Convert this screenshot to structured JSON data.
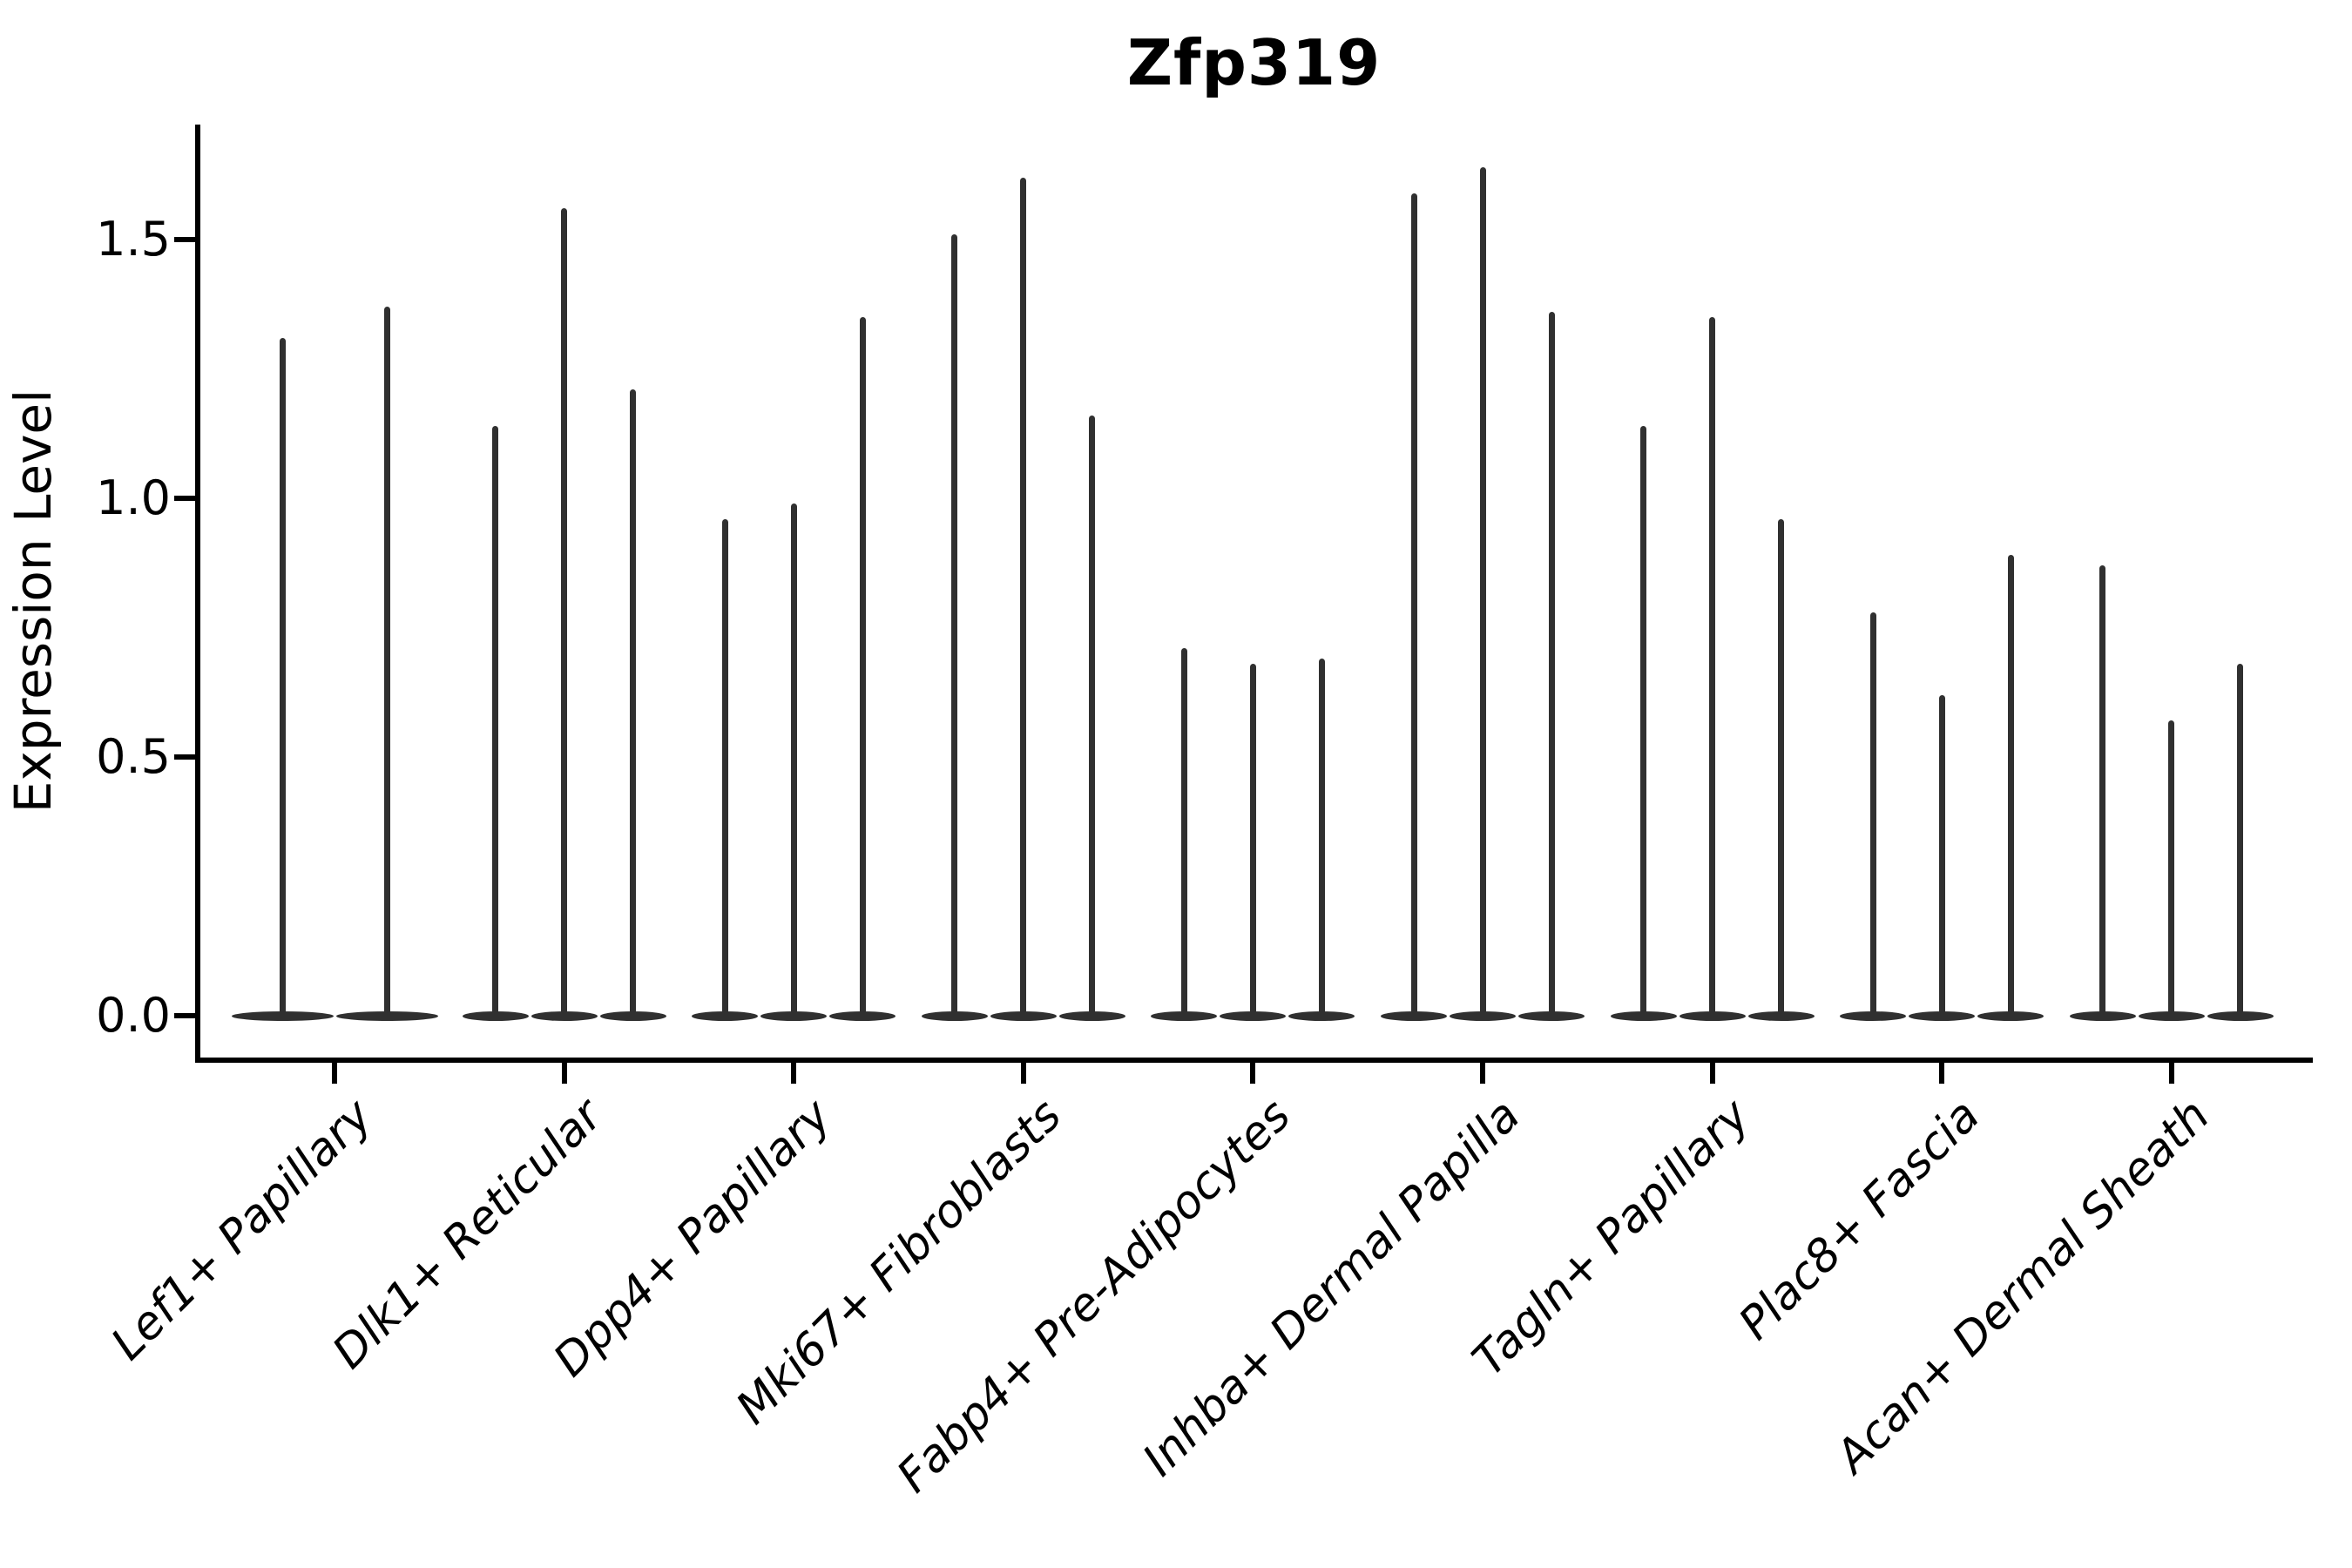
{
  "header": {
    "title": "Zfp319"
  },
  "chart_data": {
    "type": "violin",
    "title": "Zfp319",
    "ylabel": "Expression Level",
    "xlabel": "",
    "ylim": [
      0,
      1.73
    ],
    "yticks": [
      0.0,
      0.5,
      1.0,
      1.5
    ],
    "ytick_labels": [
      "0.0",
      "0.5",
      "1.0",
      "1.5"
    ],
    "grid": false,
    "legend_position": "none",
    "shape_hint": "each violin is a thin vertical spike: density concentrated at 0 with a narrow tail reaching the listed maximum",
    "groups": [
      {
        "label": "Lef1+ Papillary",
        "violin_maxima": [
          1.31,
          1.37
        ]
      },
      {
        "label": "Dlk1+ Reticular",
        "violin_maxima": [
          1.14,
          1.56,
          1.21
        ]
      },
      {
        "label": "Dpp4+ Papillary",
        "violin_maxima": [
          0.96,
          0.99,
          1.35
        ]
      },
      {
        "label": "Mki67+ Fibroblasts",
        "violin_maxima": [
          1.51,
          1.62,
          1.16
        ]
      },
      {
        "label": "Fabp4+ Pre-Adipocytes",
        "violin_maxima": [
          0.71,
          0.68,
          0.69
        ]
      },
      {
        "label": "Inhba+ Dermal Papilla",
        "violin_maxima": [
          1.59,
          1.64,
          1.36
        ]
      },
      {
        "label": "Tagln+ Papillary",
        "violin_maxima": [
          1.14,
          1.35,
          0.96
        ]
      },
      {
        "label": "Plac8+ Fascia",
        "violin_maxima": [
          0.78,
          0.62,
          0.89
        ]
      },
      {
        "label": "Acan+ Dermal Sheath",
        "violin_maxima": [
          0.87,
          0.57,
          0.68
        ]
      }
    ]
  },
  "colors": {
    "background": "#ffffff",
    "axis": "#000000",
    "text": "#000000",
    "violin": "#303030"
  }
}
